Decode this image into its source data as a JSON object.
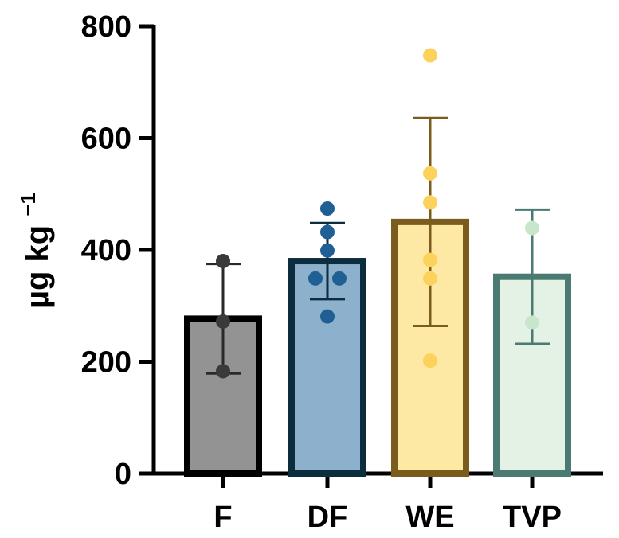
{
  "chart_data": {
    "type": "bar",
    "title": "",
    "xlabel": "",
    "ylabel": "µg kg",
    "ylabel_superscript": "−1",
    "ylim": [
      0,
      800
    ],
    "yticks": [
      0,
      200,
      400,
      600,
      800
    ],
    "ytick_labels": [
      "0",
      "200",
      "400",
      "600",
      "800"
    ],
    "categories": [
      "F",
      "DF",
      "WE",
      "TVP"
    ],
    "means": [
      277,
      380,
      450,
      352
    ],
    "sd": [
      98,
      68,
      186,
      120
    ],
    "points": [
      [
        380,
        272,
        183
      ],
      [
        474,
        432,
        399,
        349,
        349,
        281
      ],
      [
        748,
        537,
        485,
        382,
        349,
        202
      ],
      [
        439,
        270
      ]
    ],
    "styles": [
      {
        "fill": "#939393",
        "stroke": "#000000",
        "point": "#3a3a3a",
        "err": "#2a2a2a"
      },
      {
        "fill": "#8db0cc",
        "stroke": "#0b2d3e",
        "point": "#1f5f93",
        "err": "#0b2d3e"
      },
      {
        "fill": "#fde8a4",
        "stroke": "#7a5c1f",
        "point": "#fdd25c",
        "err": "#7a5c1f"
      },
      {
        "fill": "#e3f2e4",
        "stroke": "#4a7a72",
        "point": "#c8e6cc",
        "err": "#4a7a72"
      }
    ],
    "grid": false,
    "legend": "none"
  }
}
